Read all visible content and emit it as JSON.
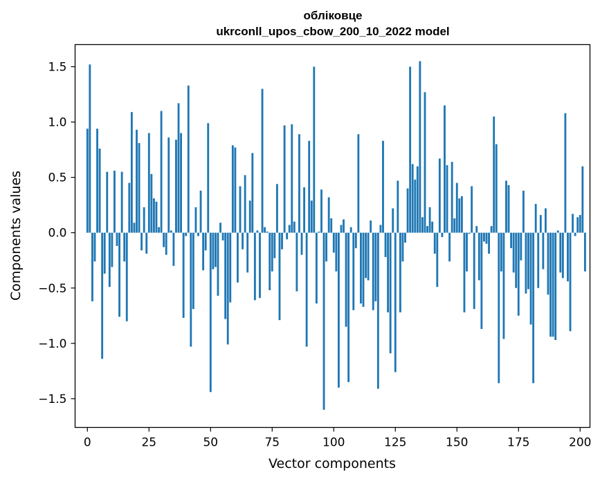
{
  "chart_data": {
    "type": "bar",
    "title": "обліковце",
    "subtitle": "ukrconll_upos_cbow_200_10_2022 model",
    "xlabel": "Vector components",
    "ylabel": "Components values",
    "xlim": [
      -5,
      204
    ],
    "ylim": [
      -1.76,
      1.7
    ],
    "xticks": [
      0,
      25,
      50,
      75,
      100,
      125,
      150,
      175,
      200
    ],
    "yticks": [
      -1.5,
      -1.0,
      -0.5,
      0.0,
      0.5,
      1.0,
      1.5
    ],
    "ytick_labels": [
      "−1.5",
      "−1.0",
      "−0.5",
      "0.0",
      "0.5",
      "1.0",
      "1.5"
    ],
    "bar_color": "#1f77b4",
    "grid": false,
    "x_start": 0,
    "values": [
      0.94,
      1.52,
      -0.62,
      -0.26,
      0.94,
      0.76,
      -1.14,
      -0.37,
      0.55,
      -0.49,
      -0.31,
      0.56,
      -0.12,
      -0.76,
      0.55,
      -0.26,
      -0.8,
      0.45,
      1.09,
      0.09,
      0.93,
      0.81,
      -0.16,
      0.23,
      -0.19,
      0.9,
      0.53,
      0.31,
      0.28,
      0.05,
      1.1,
      -0.13,
      -0.2,
      0.86,
      0.02,
      -0.3,
      0.84,
      1.17,
      0.9,
      -0.77,
      -0.03,
      1.33,
      -1.03,
      -0.69,
      0.23,
      -0.03,
      0.38,
      -0.34,
      -0.16,
      0.99,
      -1.44,
      -0.33,
      -0.31,
      -0.57,
      0.09,
      -0.07,
      -0.78,
      -1.01,
      -0.63,
      0.79,
      0.77,
      -0.45,
      0.42,
      -0.15,
      0.52,
      -0.36,
      0.29,
      0.72,
      -0.61,
      0.02,
      -0.59,
      1.3,
      0.05,
      0.01,
      -0.52,
      -0.35,
      -0.23,
      0.44,
      -0.79,
      -0.15,
      0.97,
      -0.06,
      0.07,
      0.98,
      0.1,
      -0.53,
      0.89,
      -0.2,
      0.41,
      -1.03,
      0.83,
      0.29,
      1.5,
      -0.64,
      0.01,
      0.39,
      -1.6,
      -0.26,
      0.32,
      0.13,
      -0.18,
      -0.35,
      -1.4,
      0.07,
      0.12,
      -0.85,
      -1.35,
      0.05,
      -0.7,
      -0.14,
      0.89,
      -0.64,
      -0.67,
      -0.41,
      -0.43,
      0.11,
      -0.7,
      -0.62,
      -1.41,
      0.07,
      0.83,
      -0.22,
      -0.72,
      -1.09,
      0.22,
      -1.26,
      0.47,
      -0.72,
      -0.26,
      -0.09,
      0.4,
      1.5,
      0.62,
      0.48,
      0.6,
      1.55,
      0.14,
      1.27,
      0.06,
      0.23,
      0.1,
      -0.19,
      -0.49,
      0.67,
      -0.04,
      1.15,
      0.61,
      -0.26,
      0.64,
      0.13,
      0.45,
      0.31,
      0.33,
      -0.72,
      -0.35,
      -0.01,
      0.42,
      -0.69,
      0.06,
      -0.43,
      -0.87,
      -0.08,
      -0.1,
      -0.19,
      0.06,
      1.05,
      0.8,
      -1.36,
      -0.35,
      -0.96,
      0.47,
      0.43,
      -0.14,
      -0.36,
      -0.5,
      -0.75,
      -0.25,
      0.38,
      -0.55,
      -0.51,
      -0.83,
      -1.36,
      0.26,
      -0.5,
      0.16,
      -0.33,
      0.22,
      -0.56,
      -0.94,
      -0.94,
      -0.97,
      0.02,
      -0.36,
      -0.41,
      1.08,
      -0.44,
      -0.89,
      0.17,
      -0.03,
      0.14,
      0.16,
      0.6,
      -0.35
    ]
  }
}
